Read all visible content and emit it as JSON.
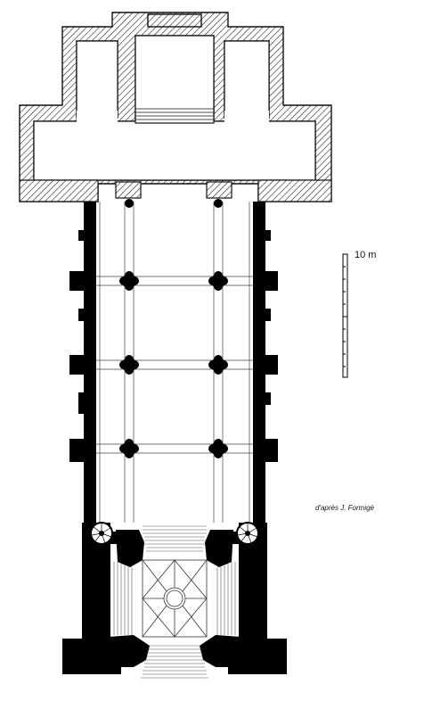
{
  "scale": {
    "label": "10 m"
  },
  "credit": {
    "text": "d'après J. Formigé"
  }
}
